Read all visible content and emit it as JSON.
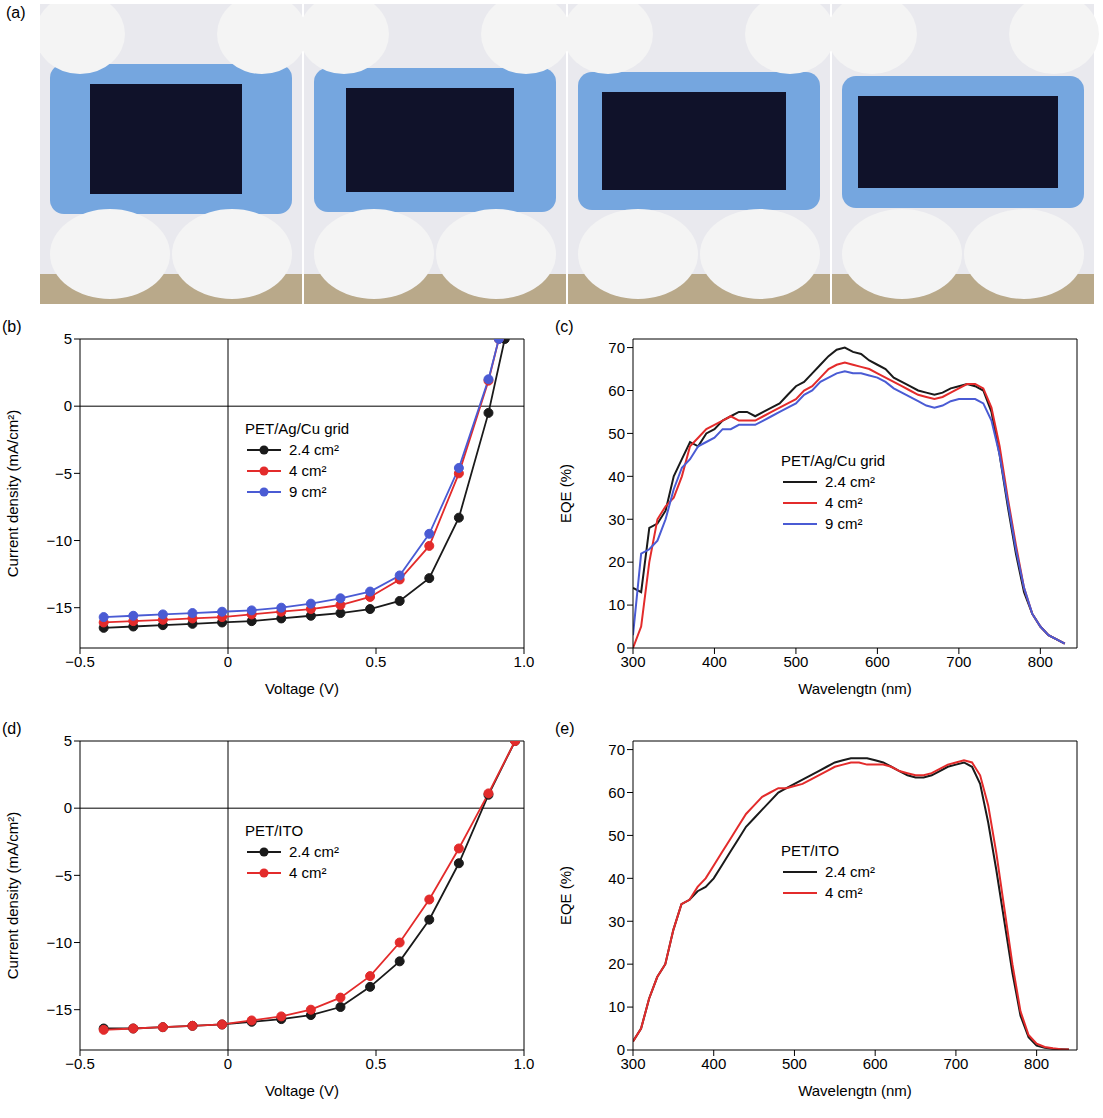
{
  "chart_data": [
    {
      "panel": "(a)",
      "type": "image"
    },
    {
      "panel": "(b)",
      "type": "line",
      "x_label": "Voltage (V)",
      "y_label": "Current density (mA/cm²)",
      "legend_title": "PET/Ag/Cu grid",
      "legend": "inside",
      "xlim": [
        -0.5,
        1.0
      ],
      "xticks": [
        {
          "value": -0.5,
          "label": "−0.5"
        },
        0,
        0.5,
        {
          "value": 1.0,
          "label": "1.0"
        }
      ],
      "ylim": [
        -18,
        5
      ],
      "yticks": [
        {
          "value": -15,
          "label": "−15"
        },
        {
          "value": -10,
          "label": "−10"
        },
        {
          "value": -5,
          "label": "−5"
        },
        0,
        5
      ],
      "xlines": [
        0
      ],
      "ylines": [
        0
      ],
      "series": [
        {
          "name": "2.4 cm²",
          "color": "#1a1a1a",
          "marker": "circle",
          "x": [
            -0.42,
            -0.32,
            -0.22,
            -0.12,
            -0.02,
            0.08,
            0.18,
            0.28,
            0.38,
            0.48,
            0.58,
            0.68,
            0.78,
            0.88,
            0.935
          ],
          "values": [
            -16.5,
            -16.4,
            -16.3,
            -16.2,
            -16.1,
            -16.0,
            -15.8,
            -15.6,
            -15.4,
            -15.1,
            -14.5,
            -12.8,
            -8.3,
            -0.5,
            5
          ]
        },
        {
          "name": "4 cm²",
          "color": "#e32b2b",
          "marker": "circle",
          "x": [
            -0.42,
            -0.32,
            -0.22,
            -0.12,
            -0.02,
            0.08,
            0.18,
            0.28,
            0.38,
            0.48,
            0.58,
            0.68,
            0.78,
            0.88,
            0.915
          ],
          "values": [
            -16.1,
            -16.0,
            -15.9,
            -15.8,
            -15.7,
            -15.5,
            -15.3,
            -15.1,
            -14.8,
            -14.2,
            -12.9,
            -10.4,
            -5.0,
            1.9,
            5
          ]
        },
        {
          "name": "9 cm²",
          "color": "#4a5bd4",
          "marker": "circle",
          "x": [
            -0.42,
            -0.32,
            -0.22,
            -0.12,
            -0.02,
            0.08,
            0.18,
            0.28,
            0.38,
            0.48,
            0.58,
            0.68,
            0.78,
            0.88,
            0.915
          ],
          "values": [
            -15.7,
            -15.6,
            -15.5,
            -15.4,
            -15.3,
            -15.2,
            -15.0,
            -14.7,
            -14.3,
            -13.8,
            -12.6,
            -9.5,
            -4.6,
            2.0,
            5
          ]
        }
      ]
    },
    {
      "panel": "(c)",
      "type": "line",
      "x_label": "Wavelengtn (nm)",
      "y_label": "EQE (%)",
      "legend_title": "PET/Ag/Cu grid",
      "legend": "inside",
      "xlim": [
        300,
        845
      ],
      "xticks": [
        300,
        400,
        500,
        600,
        700,
        800
      ],
      "ylim": [
        0,
        72
      ],
      "yticks": [
        0,
        10,
        20,
        30,
        40,
        50,
        60,
        70
      ],
      "x": [
        300,
        310,
        320,
        330,
        340,
        350,
        360,
        370,
        380,
        390,
        400,
        410,
        420,
        430,
        440,
        450,
        460,
        470,
        480,
        490,
        500,
        510,
        520,
        530,
        540,
        550,
        560,
        570,
        580,
        590,
        600,
        610,
        620,
        630,
        640,
        650,
        660,
        670,
        680,
        690,
        700,
        710,
        720,
        730,
        740,
        750,
        760,
        770,
        780,
        790,
        800,
        810,
        820,
        830
      ],
      "series": [
        {
          "name": "2.4 cm²",
          "color": "#1a1a1a",
          "values": [
            14,
            13,
            28,
            29,
            32,
            40,
            44,
            48,
            47,
            50,
            51,
            53,
            54,
            55,
            55,
            54,
            55,
            56,
            57,
            59,
            61,
            62,
            64,
            66,
            68,
            69.5,
            70,
            69,
            68.5,
            67,
            66,
            65,
            63,
            62,
            61,
            60,
            59.5,
            59,
            59.5,
            60.5,
            61,
            61.5,
            61,
            60,
            55,
            45,
            33,
            22,
            13,
            8,
            5,
            3,
            2,
            1
          ]
        },
        {
          "name": "4 cm²",
          "color": "#e32b2b",
          "values": [
            0,
            5,
            20,
            30,
            33,
            35,
            40,
            47,
            49,
            51,
            52,
            53,
            54,
            53,
            53,
            53,
            54,
            55,
            56,
            57,
            58,
            60,
            61,
            63,
            65,
            66,
            66.5,
            66,
            65.5,
            65,
            64,
            63,
            62,
            61,
            60,
            59,
            58.5,
            58,
            58.5,
            59.5,
            60.5,
            61.5,
            61.5,
            60.5,
            56,
            47,
            35,
            24,
            14,
            8,
            5,
            3,
            2,
            1
          ]
        },
        {
          "name": "9 cm²",
          "color": "#4a5bd4",
          "values": [
            3,
            22,
            23,
            25,
            30,
            37,
            42,
            44,
            47,
            48,
            49,
            51,
            51,
            52,
            52,
            52,
            53,
            54,
            55,
            56,
            57,
            59,
            60,
            62,
            63,
            64,
            64.5,
            64,
            64,
            63.5,
            63,
            62,
            60.5,
            59.5,
            58.5,
            57.5,
            56.5,
            56,
            56.5,
            57.5,
            58,
            58,
            58,
            57,
            53,
            45,
            34,
            23,
            14,
            8,
            5,
            3,
            2,
            1
          ]
        }
      ]
    },
    {
      "panel": "(d)",
      "type": "line",
      "x_label": "Voltage (V)",
      "y_label": "Current density (mA/cm²)",
      "legend_title": "PET/ITO",
      "legend": "inside",
      "xlim": [
        -0.5,
        1.0
      ],
      "xticks": [
        {
          "value": -0.5,
          "label": "−0.5"
        },
        0,
        0.5,
        {
          "value": 1.0,
          "label": "1.0"
        }
      ],
      "ylim": [
        -18,
        5
      ],
      "yticks": [
        {
          "value": -15,
          "label": "−15"
        },
        {
          "value": -10,
          "label": "−10"
        },
        {
          "value": -5,
          "label": "−5"
        },
        0,
        5
      ],
      "xlines": [
        0
      ],
      "ylines": [
        0
      ],
      "series": [
        {
          "name": "2.4 cm²",
          "color": "#1a1a1a",
          "marker": "circle",
          "x": [
            -0.42,
            -0.32,
            -0.22,
            -0.12,
            -0.02,
            0.08,
            0.18,
            0.28,
            0.38,
            0.48,
            0.58,
            0.68,
            0.78,
            0.88,
            0.97
          ],
          "values": [
            -16.4,
            -16.4,
            -16.3,
            -16.2,
            -16.1,
            -15.9,
            -15.7,
            -15.4,
            -14.8,
            -13.3,
            -11.4,
            -8.3,
            -4.1,
            1.0,
            5
          ]
        },
        {
          "name": "4 cm²",
          "color": "#e32b2b",
          "marker": "circle",
          "x": [
            -0.42,
            -0.32,
            -0.22,
            -0.12,
            -0.02,
            0.08,
            0.18,
            0.28,
            0.38,
            0.48,
            0.58,
            0.68,
            0.78,
            0.88,
            0.97
          ],
          "values": [
            -16.5,
            -16.4,
            -16.3,
            -16.2,
            -16.1,
            -15.8,
            -15.5,
            -15.0,
            -14.1,
            -12.5,
            -10.0,
            -6.8,
            -3.0,
            1.1,
            5
          ]
        }
      ]
    },
    {
      "panel": "(e)",
      "type": "line",
      "x_label": "Wavelengtn (nm)",
      "y_label": "EQE (%)",
      "legend_title": "PET/ITO",
      "legend": "inside",
      "xlim": [
        300,
        850
      ],
      "xticks": [
        300,
        400,
        500,
        600,
        700,
        800
      ],
      "ylim": [
        0,
        72
      ],
      "yticks": [
        0,
        10,
        20,
        30,
        40,
        50,
        60,
        70
      ],
      "x": [
        300,
        310,
        320,
        330,
        340,
        350,
        360,
        370,
        380,
        390,
        400,
        410,
        420,
        430,
        440,
        450,
        460,
        470,
        480,
        490,
        500,
        510,
        520,
        530,
        540,
        550,
        560,
        570,
        580,
        590,
        600,
        610,
        620,
        630,
        640,
        650,
        660,
        670,
        680,
        690,
        700,
        710,
        720,
        730,
        740,
        750,
        760,
        770,
        780,
        790,
        800,
        810,
        820,
        830,
        840
      ],
      "series": [
        {
          "name": "2.4 cm²",
          "color": "#1a1a1a",
          "values": [
            2,
            5,
            12,
            17,
            20,
            28,
            34,
            35,
            37,
            38,
            40,
            43,
            46,
            49,
            52,
            54,
            56,
            58,
            60,
            61,
            62,
            63,
            64,
            65,
            66,
            67,
            67.5,
            68,
            68,
            68,
            67.5,
            67,
            66,
            65,
            64,
            63.5,
            63.5,
            64,
            65,
            66,
            66.5,
            67,
            66,
            62,
            53,
            42,
            30,
            18,
            8,
            3,
            1,
            0.5,
            0.3,
            0.2,
            0.1
          ]
        },
        {
          "name": "4 cm²",
          "color": "#e32b2b",
          "values": [
            2,
            5,
            12,
            17,
            20,
            28,
            34,
            35,
            38,
            40,
            43,
            46,
            49,
            52,
            55,
            57,
            59,
            60,
            61,
            61,
            61.5,
            62,
            63,
            64,
            65,
            66,
            66.5,
            67,
            67,
            66.5,
            66.5,
            66.5,
            66,
            65,
            64.5,
            64,
            64,
            64.5,
            65.5,
            66.5,
            67,
            67.5,
            67,
            64,
            57,
            46,
            33,
            20,
            9,
            3.5,
            1.5,
            0.7,
            0.4,
            0.2,
            0.1
          ]
        }
      ]
    }
  ]
}
